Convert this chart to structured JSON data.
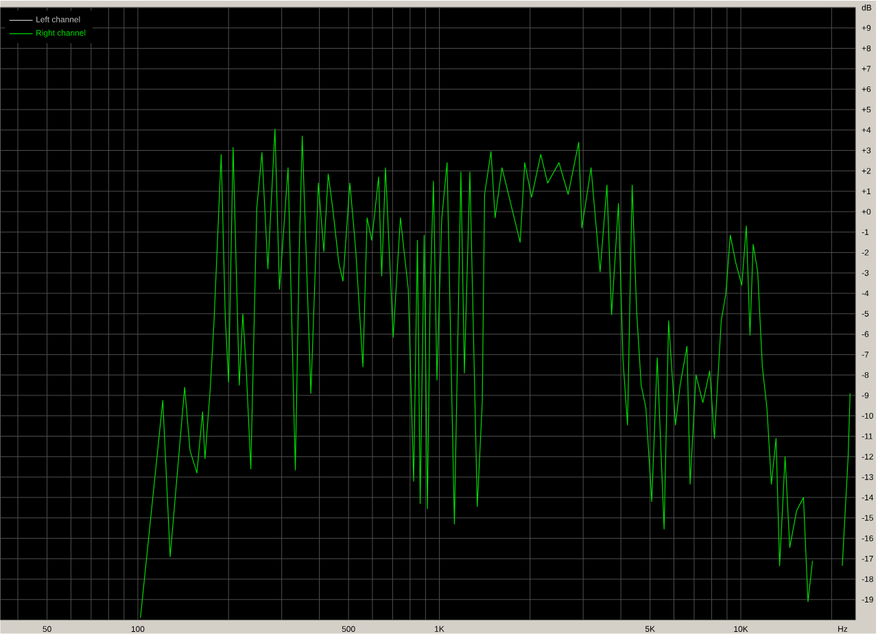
{
  "chart_data": {
    "type": "line",
    "xlabel": "Hz",
    "log": "x",
    "grid": true,
    "legend": "top left",
    "line_style": "solid",
    "marker": "none",
    "xlim": [
      35,
      24000
    ],
    "ylim": [
      -20,
      10
    ],
    "xticks": [
      {
        "value": 40,
        "label": null
      },
      50,
      {
        "value": 60,
        "label": null
      },
      {
        "value": 70,
        "label": null
      },
      {
        "value": 80,
        "label": null
      },
      {
        "value": 90,
        "label": null
      },
      100,
      {
        "value": 200,
        "label": null
      },
      {
        "value": 300,
        "label": null
      },
      {
        "value": 400,
        "label": null
      },
      500,
      {
        "value": 600,
        "label": null
      },
      {
        "value": 700,
        "label": null
      },
      {
        "value": 800,
        "label": null
      },
      {
        "value": 900,
        "label": null
      },
      {
        "value": 1000,
        "label": "1K"
      },
      {
        "value": 2000,
        "label": null
      },
      {
        "value": 3000,
        "label": null
      },
      {
        "value": 4000,
        "label": null
      },
      {
        "value": 5000,
        "label": "5K"
      },
      {
        "value": 6000,
        "label": null
      },
      {
        "value": 7000,
        "label": null
      },
      {
        "value": 8000,
        "label": null
      },
      {
        "value": 9000,
        "label": null
      },
      {
        "value": 10000,
        "label": "10K"
      },
      {
        "value": 20000,
        "label": null
      }
    ],
    "yticks": [
      -19,
      -18,
      -17,
      -16,
      -15,
      -14,
      -13,
      -12,
      -11,
      -10,
      -9,
      -8,
      -7,
      -6,
      -5,
      -4,
      -3,
      -2,
      -1,
      {
        "value": 0,
        "label": "+0"
      },
      {
        "value": 1,
        "label": "+1"
      },
      {
        "value": 2,
        "label": "+2"
      },
      {
        "value": 3,
        "label": "+3"
      },
      {
        "value": 4,
        "label": "+4"
      },
      {
        "value": 5,
        "label": "+5"
      },
      {
        "value": 6,
        "label": "+6"
      },
      {
        "value": 7,
        "label": "+7"
      },
      {
        "value": 8,
        "label": "+8"
      },
      {
        "value": 9,
        "label": "+9"
      },
      {
        "value": 10,
        "label": "dB"
      }
    ],
    "series": [
      {
        "name": "Left channel",
        "color": "#c0c0c0"
      },
      {
        "name": "Right channel",
        "color": "#00dd00",
        "x": [
          102,
          121,
          128,
          143,
          149,
          157,
          164,
          167,
          174,
          179,
          189,
          195,
          200,
          207,
          217,
          223,
          229,
          237,
          248,
          258,
          270,
          285,
          295,
          315,
          333,
          343,
          351,
          375,
          397,
          414,
          428,
          444,
          464,
          479,
          505,
          528,
          558,
          576,
          597,
          629,
          644,
          663,
          703,
          743,
          789,
          822,
          846,
          864,
          891,
          913,
          932,
          956,
          982,
          1018,
          1061,
          1122,
          1179,
          1211,
          1263,
          1336,
          1388,
          1413,
          1484,
          1531,
          1614,
          1854,
          1920,
          2023,
          2170,
          2287,
          2494,
          2675,
          2900,
          2970,
          3186,
          3414,
          3597,
          3727,
          3928,
          4066,
          4209,
          4361,
          4513,
          4672,
          4842,
          5065,
          5281,
          5566,
          5761,
          6071,
          6290,
          6629,
          6790,
          7101,
          7483,
          7886,
          8172,
          8610,
          8913,
          9226,
          9621,
          10074,
          10428,
          10727,
          10988,
          11374,
          11787,
          12204,
          12632,
          13088,
          13448,
          14024,
          14533,
          15311,
          16136,
          16703,
          17290,
          18541,
          19890,
          21701,
          22697,
          23034
        ],
        "values": [
          -19.9,
          -9.25,
          -16.9,
          -8.6,
          -11.7,
          -12.8,
          -9.8,
          -12.1,
          -8.6,
          -5.35,
          2.8,
          -5.15,
          -8.35,
          3.15,
          -8.5,
          -5.0,
          -7.8,
          -12.6,
          0.15,
          2.9,
          -2.8,
          4.05,
          -3.8,
          2.15,
          -12.65,
          -2.05,
          3.7,
          -8.9,
          1.4,
          -1.95,
          1.85,
          0.05,
          -2.5,
          -3.4,
          1.4,
          -1.85,
          -7.6,
          -0.3,
          -1.4,
          1.7,
          -3.15,
          2.15,
          -6.15,
          -0.3,
          -3.8,
          -13.2,
          -1.4,
          -14.3,
          -1.15,
          -14.55,
          -4.25,
          1.5,
          -8.25,
          -0.4,
          2.4,
          -15.3,
          1.95,
          -7.9,
          1.95,
          -14.45,
          -9.35,
          0.85,
          2.95,
          -0.3,
          2.15,
          -1.5,
          2.4,
          0.7,
          2.8,
          1.4,
          2.4,
          0.85,
          3.4,
          -0.8,
          2.15,
          -2.95,
          1.3,
          -5.05,
          0.4,
          -7.25,
          -10.45,
          1.3,
          -4.9,
          -8.5,
          -9.6,
          -14.2,
          -7.15,
          -15.55,
          -5.35,
          -10.45,
          -8.5,
          -6.6,
          -13.35,
          -8.0,
          -9.35,
          -7.8,
          -11.1,
          -5.35,
          -4.05,
          -1.15,
          -2.5,
          -3.6,
          -0.7,
          -6.05,
          -1.6,
          -2.95,
          -7.6,
          -9.6,
          -13.35,
          -11.1,
          -17.35,
          -12.0,
          -16.45,
          -14.65,
          -14.0,
          -19.1,
          -17.1,
          null,
          null,
          -17.35,
          -12.0,
          -8.9
        ]
      }
    ]
  }
}
